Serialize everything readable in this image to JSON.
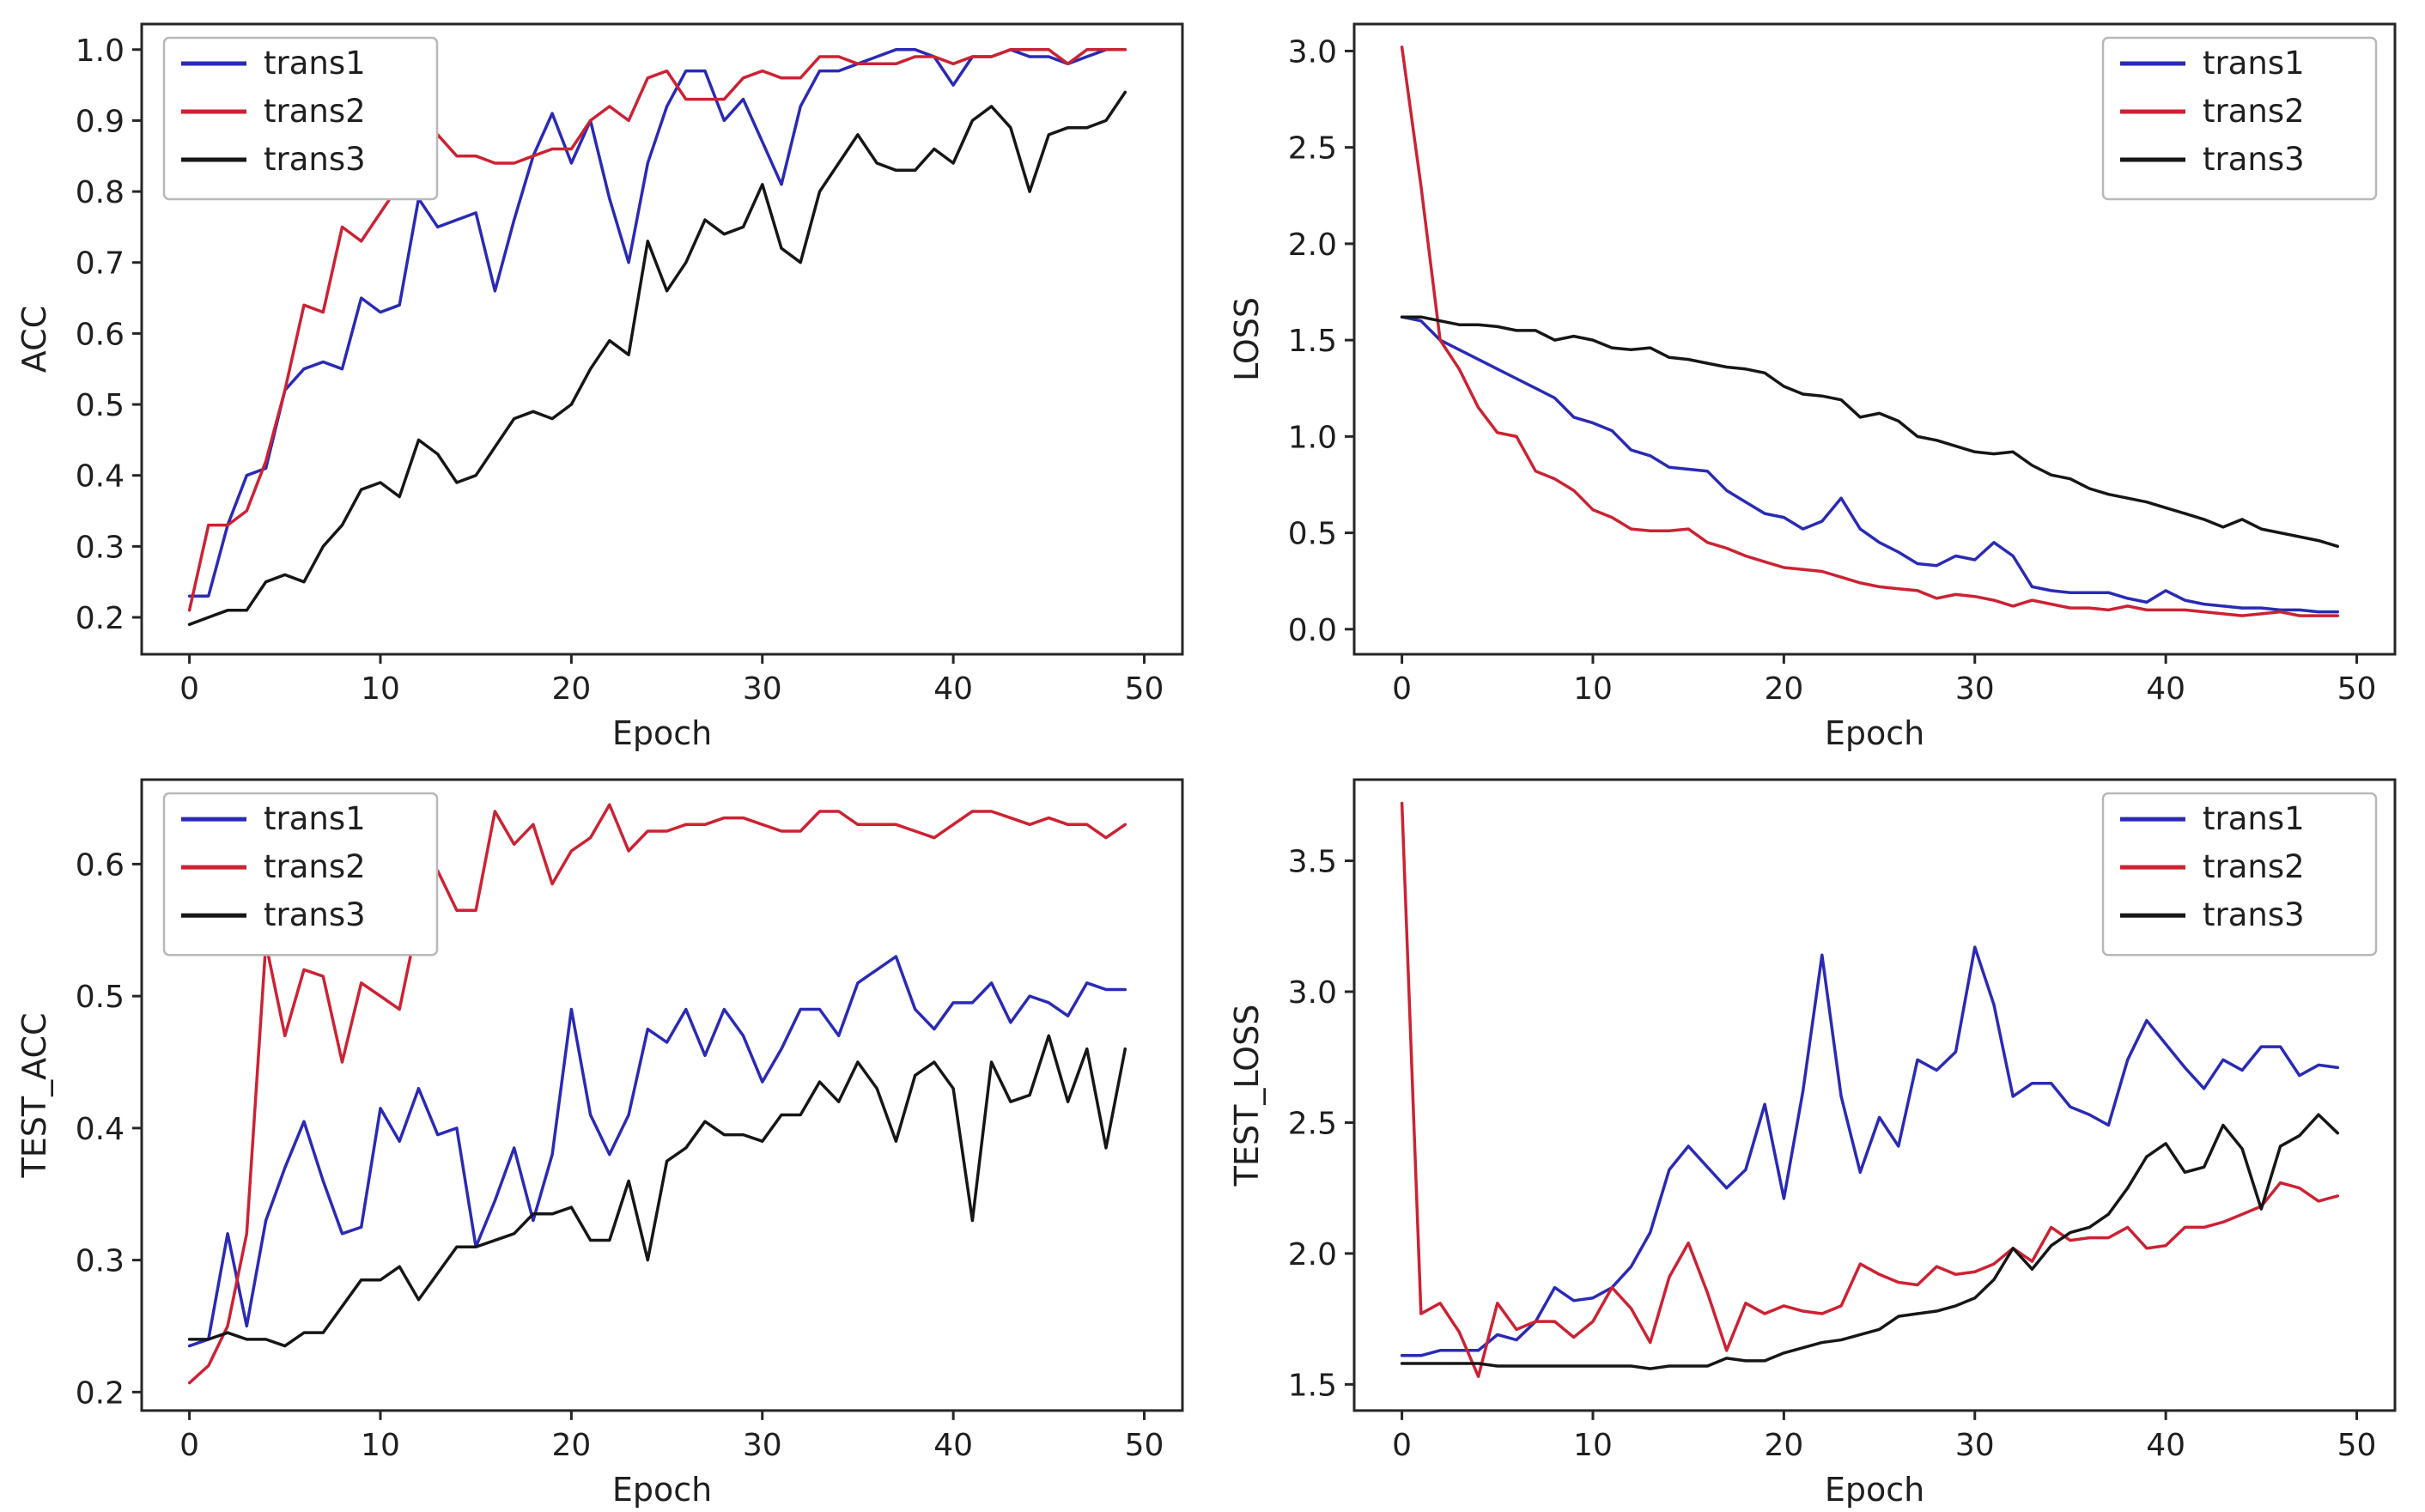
{
  "page": {
    "background": "#ffffff",
    "text_color": "#1f1f1f",
    "frame_color": "#262626",
    "legend_border_color": "#b8b8b8",
    "legend_bg": "#ffffff"
  },
  "chart_data": [
    {
      "type": "line",
      "title": "",
      "xlabel": "Epoch",
      "ylabel": "ACC",
      "xlim": [
        -2.5,
        52
      ],
      "ylim": [
        0.148,
        1.036
      ],
      "xticks": [
        0,
        10,
        20,
        30,
        40,
        50
      ],
      "yticks": [
        0.2,
        0.3,
        0.4,
        0.5,
        0.6,
        0.7,
        0.8,
        0.9,
        1.0
      ],
      "grid": false,
      "legend_loc": "upper-left",
      "x_start": 0,
      "x_step": 1,
      "series": [
        {
          "name": "trans1",
          "color": "#2a2ab5",
          "values": [
            0.23,
            0.23,
            0.33,
            0.4,
            0.41,
            0.52,
            0.55,
            0.56,
            0.55,
            0.65,
            0.63,
            0.64,
            0.79,
            0.75,
            0.76,
            0.77,
            0.66,
            0.76,
            0.85,
            0.91,
            0.84,
            0.9,
            0.79,
            0.7,
            0.84,
            0.92,
            0.97,
            0.97,
            0.9,
            0.93,
            0.87,
            0.81,
            0.92,
            0.97,
            0.97,
            0.98,
            0.99,
            1.0,
            1.0,
            0.99,
            0.95,
            0.99,
            0.99,
            1.0,
            0.99,
            0.99,
            0.98,
            0.99,
            1.0,
            1.0
          ]
        },
        {
          "name": "trans2",
          "color": "#cc2233",
          "values": [
            0.21,
            0.33,
            0.33,
            0.35,
            0.42,
            0.52,
            0.64,
            0.63,
            0.75,
            0.73,
            0.77,
            0.81,
            0.79,
            0.88,
            0.85,
            0.85,
            0.84,
            0.84,
            0.85,
            0.86,
            0.86,
            0.9,
            0.92,
            0.9,
            0.96,
            0.97,
            0.93,
            0.93,
            0.93,
            0.96,
            0.97,
            0.96,
            0.96,
            0.99,
            0.99,
            0.98,
            0.98,
            0.98,
            0.99,
            0.99,
            0.98,
            0.99,
            0.99,
            1.0,
            1.0,
            1.0,
            0.98,
            1.0,
            1.0,
            1.0
          ]
        },
        {
          "name": "trans3",
          "color": "#161616",
          "values": [
            0.19,
            0.2,
            0.21,
            0.21,
            0.25,
            0.26,
            0.25,
            0.3,
            0.33,
            0.38,
            0.39,
            0.37,
            0.45,
            0.43,
            0.39,
            0.4,
            0.44,
            0.48,
            0.49,
            0.48,
            0.5,
            0.55,
            0.59,
            0.57,
            0.73,
            0.66,
            0.7,
            0.76,
            0.74,
            0.75,
            0.81,
            0.72,
            0.7,
            0.8,
            0.84,
            0.88,
            0.84,
            0.83,
            0.83,
            0.86,
            0.84,
            0.9,
            0.92,
            0.89,
            0.8,
            0.88,
            0.89,
            0.89,
            0.9,
            0.94
          ]
        }
      ]
    },
    {
      "type": "line",
      "title": "",
      "xlabel": "Epoch",
      "ylabel": "LOSS",
      "xlim": [
        -2.5,
        52
      ],
      "ylim": [
        -0.13,
        3.14
      ],
      "xticks": [
        0,
        10,
        20,
        30,
        40,
        50
      ],
      "yticks": [
        0.0,
        0.5,
        1.0,
        1.5,
        2.0,
        2.5,
        3.0
      ],
      "grid": false,
      "legend_loc": "upper-right",
      "x_start": 0,
      "x_step": 1,
      "series": [
        {
          "name": "trans1",
          "color": "#2a2ab5",
          "values": [
            1.62,
            1.6,
            1.5,
            1.45,
            1.4,
            1.35,
            1.3,
            1.25,
            1.2,
            1.1,
            1.07,
            1.03,
            0.93,
            0.9,
            0.84,
            0.83,
            0.82,
            0.72,
            0.66,
            0.6,
            0.58,
            0.52,
            0.56,
            0.68,
            0.52,
            0.45,
            0.4,
            0.34,
            0.33,
            0.38,
            0.36,
            0.45,
            0.38,
            0.22,
            0.2,
            0.19,
            0.19,
            0.19,
            0.16,
            0.14,
            0.2,
            0.15,
            0.13,
            0.12,
            0.11,
            0.11,
            0.1,
            0.1,
            0.09,
            0.09
          ]
        },
        {
          "name": "trans2",
          "color": "#cc2233",
          "values": [
            3.02,
            2.3,
            1.5,
            1.35,
            1.15,
            1.02,
            1.0,
            0.82,
            0.78,
            0.72,
            0.62,
            0.58,
            0.52,
            0.51,
            0.51,
            0.52,
            0.45,
            0.42,
            0.38,
            0.35,
            0.32,
            0.31,
            0.3,
            0.27,
            0.24,
            0.22,
            0.21,
            0.2,
            0.16,
            0.18,
            0.17,
            0.15,
            0.12,
            0.15,
            0.13,
            0.11,
            0.11,
            0.1,
            0.12,
            0.1,
            0.1,
            0.1,
            0.09,
            0.08,
            0.07,
            0.08,
            0.09,
            0.07,
            0.07,
            0.07
          ]
        },
        {
          "name": "trans3",
          "color": "#161616",
          "values": [
            1.62,
            1.62,
            1.6,
            1.58,
            1.58,
            1.57,
            1.55,
            1.55,
            1.5,
            1.52,
            1.5,
            1.46,
            1.45,
            1.46,
            1.41,
            1.4,
            1.38,
            1.36,
            1.35,
            1.33,
            1.26,
            1.22,
            1.21,
            1.19,
            1.1,
            1.12,
            1.08,
            1.0,
            0.98,
            0.95,
            0.92,
            0.91,
            0.92,
            0.85,
            0.8,
            0.78,
            0.73,
            0.7,
            0.68,
            0.66,
            0.63,
            0.6,
            0.57,
            0.53,
            0.57,
            0.52,
            0.5,
            0.48,
            0.46,
            0.43
          ]
        }
      ]
    },
    {
      "type": "line",
      "title": "",
      "xlabel": "Epoch",
      "ylabel": "TEST_ACC",
      "xlim": [
        -2.5,
        52
      ],
      "ylim": [
        0.186,
        0.664
      ],
      "xticks": [
        0,
        10,
        20,
        30,
        40,
        50
      ],
      "yticks": [
        0.2,
        0.3,
        0.4,
        0.5,
        0.6
      ],
      "grid": false,
      "legend_loc": "upper-left",
      "x_start": 0,
      "x_step": 1,
      "series": [
        {
          "name": "trans1",
          "color": "#2a2ab5",
          "values": [
            0.235,
            0.24,
            0.32,
            0.25,
            0.33,
            0.37,
            0.405,
            0.36,
            0.32,
            0.325,
            0.415,
            0.39,
            0.43,
            0.395,
            0.4,
            0.31,
            0.345,
            0.385,
            0.33,
            0.38,
            0.49,
            0.41,
            0.38,
            0.41,
            0.475,
            0.465,
            0.49,
            0.455,
            0.49,
            0.47,
            0.435,
            0.46,
            0.49,
            0.49,
            0.47,
            0.51,
            0.52,
            0.53,
            0.49,
            0.475,
            0.495,
            0.495,
            0.51,
            0.48,
            0.5,
            0.495,
            0.485,
            0.51,
            0.505,
            0.505
          ]
        },
        {
          "name": "trans2",
          "color": "#cc2233",
          "values": [
            0.207,
            0.22,
            0.25,
            0.32,
            0.54,
            0.47,
            0.52,
            0.515,
            0.45,
            0.51,
            0.5,
            0.49,
            0.56,
            0.595,
            0.565,
            0.565,
            0.64,
            0.615,
            0.63,
            0.585,
            0.61,
            0.62,
            0.645,
            0.61,
            0.625,
            0.625,
            0.63,
            0.63,
            0.635,
            0.635,
            0.63,
            0.625,
            0.625,
            0.64,
            0.64,
            0.63,
            0.63,
            0.63,
            0.625,
            0.62,
            0.63,
            0.64,
            0.64,
            0.635,
            0.63,
            0.635,
            0.63,
            0.63,
            0.62,
            0.63
          ]
        },
        {
          "name": "trans3",
          "color": "#161616",
          "values": [
            0.24,
            0.24,
            0.245,
            0.24,
            0.24,
            0.235,
            0.245,
            0.245,
            0.265,
            0.285,
            0.285,
            0.295,
            0.27,
            0.29,
            0.31,
            0.31,
            0.315,
            0.32,
            0.335,
            0.335,
            0.34,
            0.315,
            0.315,
            0.36,
            0.3,
            0.375,
            0.385,
            0.405,
            0.395,
            0.395,
            0.39,
            0.41,
            0.41,
            0.435,
            0.42,
            0.45,
            0.43,
            0.39,
            0.44,
            0.45,
            0.43,
            0.33,
            0.45,
            0.42,
            0.425,
            0.47,
            0.42,
            0.46,
            0.385,
            0.46
          ]
        }
      ]
    },
    {
      "type": "line",
      "title": "",
      "xlabel": "Epoch",
      "ylabel": "TEST_LOSS",
      "xlim": [
        -2.5,
        52
      ],
      "ylim": [
        1.4,
        3.81
      ],
      "xticks": [
        0,
        10,
        20,
        30,
        40,
        50
      ],
      "yticks": [
        1.5,
        2.0,
        2.5,
        3.0,
        3.5
      ],
      "grid": false,
      "legend_loc": "upper-right",
      "x_start": 0,
      "x_step": 1,
      "series": [
        {
          "name": "trans1",
          "color": "#2a2ab5",
          "values": [
            1.61,
            1.61,
            1.63,
            1.63,
            1.63,
            1.69,
            1.67,
            1.74,
            1.87,
            1.82,
            1.83,
            1.87,
            1.95,
            2.08,
            2.32,
            2.41,
            2.33,
            2.25,
            2.32,
            2.57,
            2.21,
            2.62,
            3.14,
            2.6,
            2.31,
            2.52,
            2.41,
            2.74,
            2.7,
            2.77,
            3.17,
            2.95,
            2.6,
            2.65,
            2.65,
            2.56,
            2.53,
            2.49,
            2.74,
            2.89,
            2.8,
            2.71,
            2.63,
            2.74,
            2.7,
            2.79,
            2.79,
            2.68,
            2.72,
            2.71
          ]
        },
        {
          "name": "trans2",
          "color": "#cc2233",
          "values": [
            3.72,
            1.77,
            1.81,
            1.7,
            1.53,
            1.81,
            1.71,
            1.74,
            1.74,
            1.68,
            1.74,
            1.87,
            1.79,
            1.66,
            1.91,
            2.04,
            1.85,
            1.63,
            1.81,
            1.77,
            1.8,
            1.78,
            1.77,
            1.8,
            1.96,
            1.92,
            1.89,
            1.88,
            1.95,
            1.92,
            1.93,
            1.96,
            2.02,
            1.97,
            2.1,
            2.05,
            2.06,
            2.06,
            2.1,
            2.02,
            2.03,
            2.1,
            2.1,
            2.12,
            2.15,
            2.18,
            2.27,
            2.25,
            2.2,
            2.22
          ]
        },
        {
          "name": "trans3",
          "color": "#161616",
          "values": [
            1.58,
            1.58,
            1.58,
            1.58,
            1.58,
            1.57,
            1.57,
            1.57,
            1.57,
            1.57,
            1.57,
            1.57,
            1.57,
            1.56,
            1.57,
            1.57,
            1.57,
            1.6,
            1.59,
            1.59,
            1.62,
            1.64,
            1.66,
            1.67,
            1.69,
            1.71,
            1.76,
            1.77,
            1.78,
            1.8,
            1.83,
            1.9,
            2.02,
            1.94,
            2.03,
            2.08,
            2.1,
            2.15,
            2.25,
            2.37,
            2.42,
            2.31,
            2.33,
            2.49,
            2.4,
            2.17,
            2.41,
            2.45,
            2.53,
            2.46
          ]
        }
      ]
    }
  ]
}
